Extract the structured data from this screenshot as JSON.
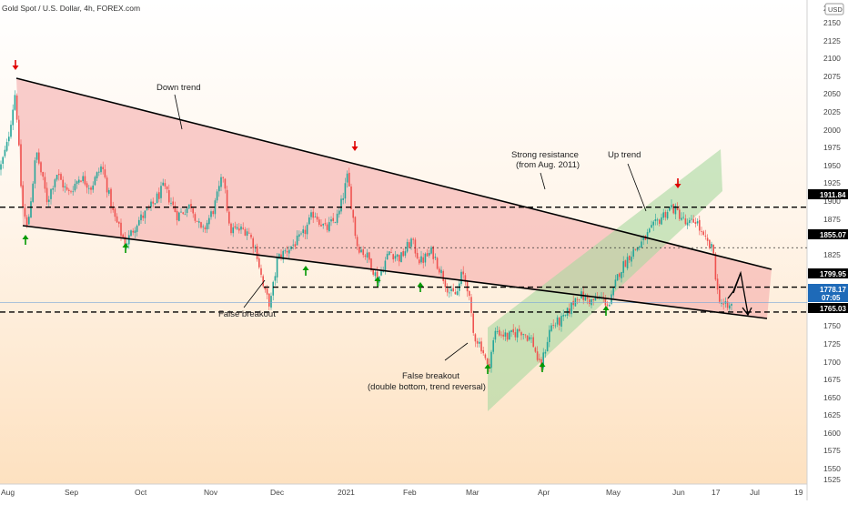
{
  "header": {
    "title": "Gold Spot / U.S. Dollar, 4h, FOREX.com",
    "currency": "USD"
  },
  "chart_data": {
    "type": "candlestick",
    "title": "Gold Spot / U.S. Dollar, 4h, FOREX.com",
    "y_axis_ticks": [
      2175,
      2150,
      2125,
      2100,
      2075,
      2050,
      2025,
      2000,
      1975,
      1950,
      1925,
      1900,
      1875,
      1825,
      1800,
      1750,
      1725,
      1700,
      1675,
      1650,
      1625,
      1600,
      1575,
      1550,
      1525
    ],
    "ylim": [
      1515,
      2200
    ],
    "x_axis_ticks": [
      "Aug",
      "Sep",
      "Oct",
      "Nov",
      "Dec",
      "2021",
      "Feb",
      "Mar",
      "Apr",
      "May",
      "Jun",
      "17",
      "Jul",
      "19"
    ],
    "price_labels": [
      {
        "value": "1911.84",
        "bg": "#000000",
        "fg": "#ffffff"
      },
      {
        "value": "1855.07",
        "bg": "#000000",
        "fg": "#ffffff"
      },
      {
        "value": "1799.95",
        "bg": "#000000",
        "fg": "#ffffff"
      },
      {
        "value": "1778.17",
        "sub": "07:05",
        "bg": "#1e6ab8",
        "fg": "#ffffff"
      },
      {
        "value": "1765.03",
        "bg": "#000000",
        "fg": "#ffffff"
      }
    ],
    "annotations": [
      {
        "text": "Down trend"
      },
      {
        "text": "Strong resistance"
      },
      {
        "text": "(from Aug. 2011)"
      },
      {
        "text": "Up trend"
      },
      {
        "text": "False breakout"
      },
      {
        "text": "False breakout"
      },
      {
        "text": "(double bottom, trend reversal)"
      }
    ],
    "colors": {
      "up": "#26a69a",
      "down": "#ef5350",
      "wedge_fill": "#f4a6a6",
      "channel_fill": "#a8d8a0",
      "bg_top": "#ffffff",
      "bg_bottom": "#fde3c4"
    }
  }
}
